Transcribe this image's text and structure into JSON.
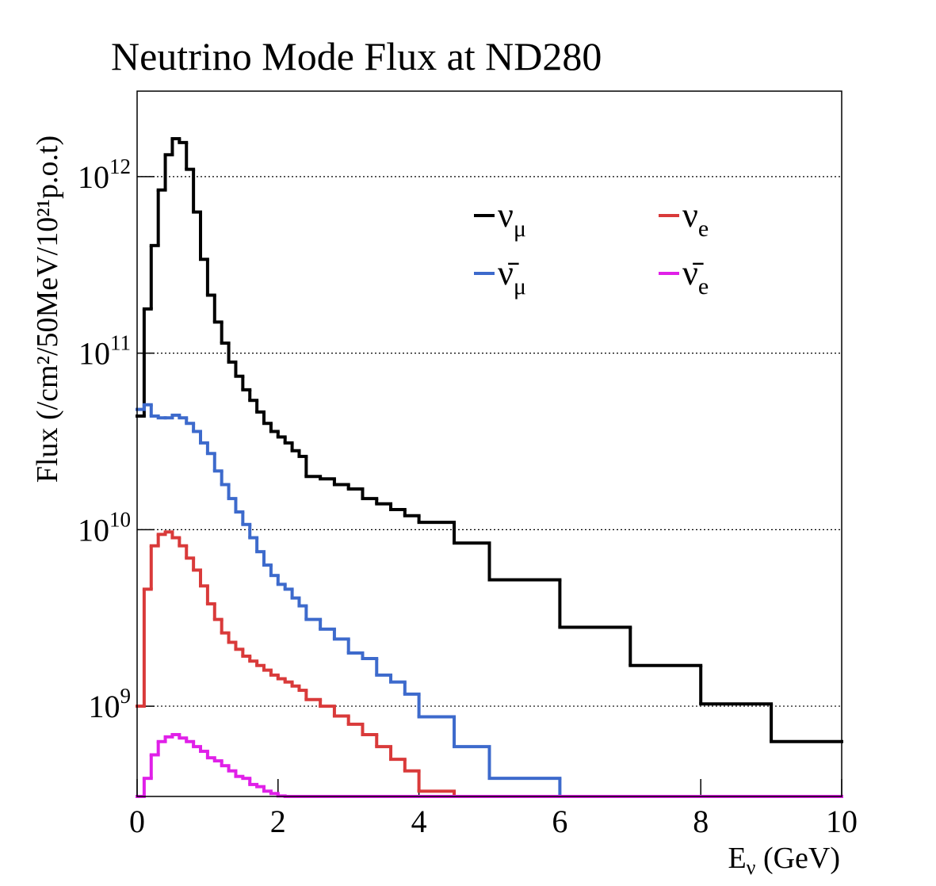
{
  "chart_data": {
    "type": "histogram",
    "title": "Neutrino Mode Flux at ND280",
    "ylabel": "Flux (/cm²/50MeV/10²¹p.o.t)",
    "xlabel": {
      "text": "E",
      "subscript": "ν",
      "suffix": " (GeV)"
    },
    "log_y": true,
    "ygrid": true,
    "legend_loc": "upper right",
    "legend_columns": 2,
    "xlim": [
      0,
      10
    ],
    "xticks": [
      0,
      2,
      4,
      6,
      8,
      10
    ],
    "ylim": [
      308000000,
      3050000000000
    ],
    "yticks": [
      {
        "value": 1000000000,
        "label": "10",
        "superscript": "9"
      },
      {
        "value": 10000000000,
        "label": "10",
        "superscript": "10"
      },
      {
        "value": 100000000000,
        "label": "10",
        "superscript": "11"
      },
      {
        "value": 1000000000000,
        "label": "10",
        "superscript": "12"
      }
    ],
    "bins": [
      0,
      0.1,
      0.2,
      0.3,
      0.4,
      0.5,
      0.6,
      0.7,
      0.8,
      0.9,
      1.0,
      1.1,
      1.2,
      1.3,
      1.4,
      1.5,
      1.6,
      1.7,
      1.8,
      1.9,
      2.0,
      2.1,
      2.2,
      2.3,
      2.4,
      2.6,
      2.8,
      3.0,
      3.2,
      3.4,
      3.6,
      3.8,
      4.0,
      4.5,
      5,
      6,
      7,
      8,
      9,
      10
    ],
    "series": [
      {
        "name": "ν",
        "subscript": "μ",
        "color": "#000000",
        "values": [
          44000000000,
          178000000000,
          407000000000,
          840000000000,
          1330000000000,
          1640000000000,
          1560000000000,
          1100000000000,
          630000000000,
          340000000000,
          213000000000,
          150000000000,
          114000000000,
          89000000000,
          74000000000,
          62000000000,
          54000000000,
          46400000000,
          40000000000,
          36000000000,
          33500000000,
          31000000000,
          28000000000,
          26000000000,
          20000000000,
          19400000000,
          18000000000,
          17000000000,
          15000000000,
          14000000000,
          13000000000,
          12000000000,
          11000000000,
          8400000000,
          5200000000,
          2800000000,
          1700000000,
          1030000000,
          630000000
        ]
      },
      {
        "name": "ν",
        "subscript": "e",
        "color": "#d93a3a",
        "values": [
          1000000000,
          4600000000,
          8100000000,
          9400000000,
          9700000000,
          9000000000,
          8100000000,
          6900000000,
          5900000000,
          4800000000,
          3800000000,
          3100000000,
          2600000000,
          2300000000,
          2100000000,
          1920000000,
          1800000000,
          1700000000,
          1600000000,
          1500000000,
          1430000000,
          1370000000,
          1300000000,
          1230000000,
          1090000000,
          1000000000,
          880000000,
          790000000,
          690000000,
          590000000,
          500000000,
          430000000,
          330000000,
          0,
          0,
          0,
          0,
          0,
          0
        ]
      },
      {
        "name": "ν̄",
        "subscript": "μ",
        "color": "#3d6acc",
        "values": [
          48000000000,
          51000000000,
          44000000000,
          43000000000,
          43000000000,
          44500000000,
          43000000000,
          40000000000,
          36000000000,
          31000000000,
          27000000000,
          21500000000,
          18000000000,
          15000000000,
          12600000000,
          10700000000,
          9000000000,
          7500000000,
          6300000000,
          5500000000,
          4900000000,
          4600000000,
          4100000000,
          3700000000,
          3100000000,
          2730000000,
          2400000000,
          2000000000,
          1860000000,
          1500000000,
          1370000000,
          1170000000,
          870000000,
          590000000,
          390000000,
          0,
          0,
          0,
          0
        ]
      },
      {
        "name": "ν̄",
        "subscript": "e",
        "color": "#e020e8",
        "values": [
          0,
          390000000,
          530000000,
          630000000,
          670000000,
          690000000,
          660000000,
          630000000,
          590000000,
          555000000,
          510000000,
          490000000,
          460000000,
          430000000,
          400000000,
          390000000,
          360000000,
          350000000,
          330000000,
          320000000,
          310000000,
          0,
          0,
          0,
          0,
          0,
          0,
          0,
          0,
          0,
          0,
          0,
          0,
          0,
          0,
          0,
          0,
          0,
          0
        ]
      }
    ]
  }
}
